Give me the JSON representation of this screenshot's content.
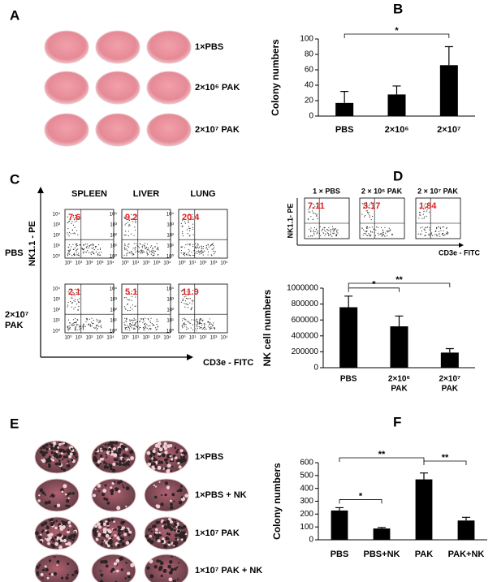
{
  "panel_labels": [
    "A",
    "B",
    "C",
    "D",
    "E",
    "F"
  ],
  "panel_a": {
    "labels": [
      "1×PBS",
      "2×10⁶ PAK",
      "2×10⁷ PAK"
    ]
  },
  "panel_c": {
    "columns": [
      "SPLEEN",
      "LIVER",
      "LUNG"
    ],
    "rows": [
      [
        "PBS"
      ],
      [
        "2×10⁷",
        "PAK"
      ]
    ],
    "percentages": [
      [
        "7.6",
        "9.2",
        "20.4"
      ],
      [
        "2.1",
        "5.1",
        "11.9"
      ]
    ],
    "y_axis": "NK1.1 - PE",
    "x_axis": "CD3e - FITC",
    "ticks": [
      "10⁰",
      "10¹",
      "10²",
      "10³",
      "10⁴"
    ]
  },
  "panel_d": {
    "columns": [
      "1 × PBS",
      "2 × 10⁶ PAK",
      "2 × 10⁷ PAK"
    ],
    "percentages": [
      "7.11",
      "3.17",
      "1.84"
    ],
    "y_axis": "NK1.1- PE",
    "x_axis": "CD3e - FITC"
  },
  "panel_e": {
    "labels": [
      "1×PBS",
      "1×PBS + NK",
      "1×10⁷ PAK",
      "1×10⁷ PAK + NK"
    ]
  },
  "chart_data": [
    {
      "type": "bar",
      "ylabel": "Colony numbers",
      "categories": [
        "PBS",
        "2×10⁶",
        "2×10⁷"
      ],
      "values": [
        17,
        28,
        66
      ],
      "errors": [
        15,
        11,
        24
      ],
      "color": "#000000",
      "ylim": [
        0,
        100
      ],
      "yticks": [
        0,
        20,
        40,
        60,
        80,
        100
      ],
      "significance": {
        "pairs": [
          [
            0,
            2
          ]
        ],
        "labels": [
          "*"
        ]
      }
    },
    {
      "type": "bar",
      "ylabel": "NK cell numbers",
      "categories": [
        [
          "PBS"
        ],
        [
          "2×10⁶",
          "PAK"
        ],
        [
          "2×10⁷",
          "PAK"
        ]
      ],
      "values": [
        760000,
        520000,
        190000
      ],
      "errors": [
        140000,
        130000,
        50000
      ],
      "color": "#000000",
      "ylim": [
        0,
        1000000
      ],
      "yticks": [
        0,
        200000,
        400000,
        600000,
        800000,
        1000000
      ],
      "significance": {
        "pairs": [
          [
            0,
            1
          ],
          [
            0,
            2
          ]
        ],
        "labels": [
          "*",
          "**"
        ]
      }
    },
    {
      "type": "bar",
      "ylabel": "Colony numbers",
      "categories": [
        "PBS",
        "PBS+NK",
        "PAK",
        "PAK+NK"
      ],
      "values": [
        228,
        88,
        470,
        150
      ],
      "errors": [
        22,
        8,
        50,
        25
      ],
      "color": "#000000",
      "ylim": [
        0,
        600
      ],
      "yticks": [
        0,
        100,
        200,
        300,
        400,
        500,
        600
      ],
      "significance": {
        "pairs": [
          [
            0,
            1
          ],
          [
            0,
            2
          ],
          [
            2,
            3
          ]
        ],
        "labels": [
          "*",
          "**",
          "**"
        ]
      }
    }
  ]
}
